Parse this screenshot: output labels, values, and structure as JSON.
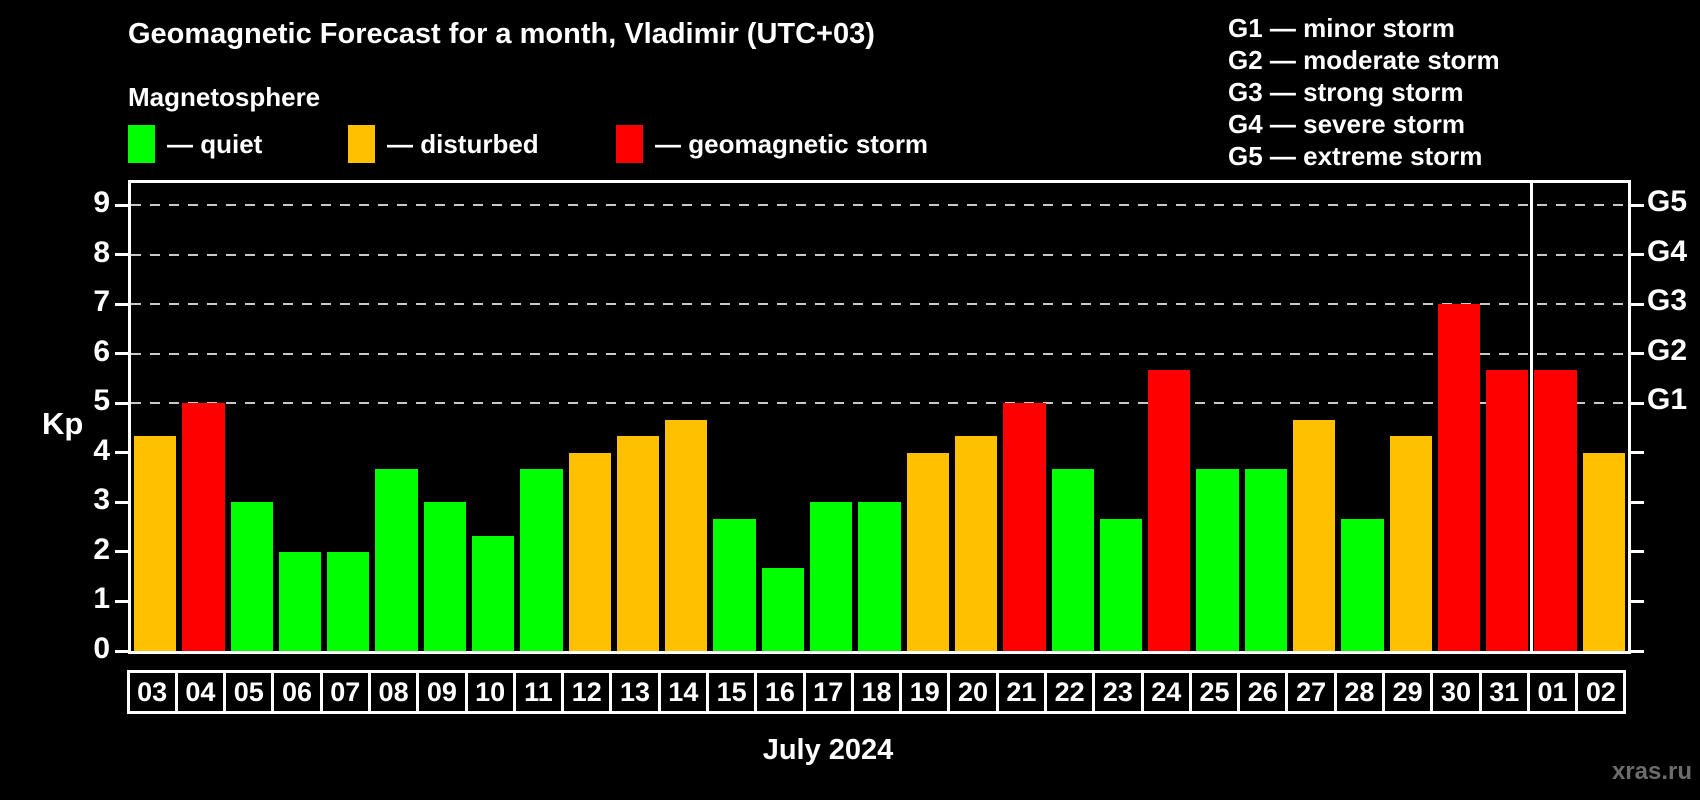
{
  "chart_data": {
    "type": "bar",
    "title": "Geomagnetic Forecast for a month, Vladimir (UTC+03)",
    "subtitle": "Magnetosphere",
    "categories": [
      "03",
      "04",
      "05",
      "06",
      "07",
      "08",
      "09",
      "10",
      "11",
      "12",
      "13",
      "14",
      "15",
      "16",
      "17",
      "18",
      "19",
      "20",
      "21",
      "22",
      "23",
      "24",
      "25",
      "26",
      "27",
      "28",
      "29",
      "30",
      "31",
      "01",
      "02"
    ],
    "values": [
      4.33,
      5,
      3,
      2,
      2,
      3.67,
      3,
      2.33,
      3.67,
      4,
      4.33,
      4.67,
      2.67,
      1.67,
      3,
      3,
      4,
      4.33,
      5,
      3.67,
      2.67,
      5.67,
      3.67,
      3.67,
      4.67,
      2.67,
      4.33,
      7,
      5.67,
      5.67,
      4
    ],
    "statuses": [
      "disturbed",
      "storm",
      "quiet",
      "quiet",
      "quiet",
      "quiet",
      "quiet",
      "quiet",
      "quiet",
      "disturbed",
      "disturbed",
      "disturbed",
      "quiet",
      "quiet",
      "quiet",
      "quiet",
      "disturbed",
      "disturbed",
      "storm",
      "quiet",
      "quiet",
      "storm",
      "quiet",
      "quiet",
      "disturbed",
      "quiet",
      "disturbed",
      "storm",
      "storm",
      "storm",
      "disturbed"
    ],
    "series_colors": {
      "quiet": "#00ff00",
      "disturbed": "#ffc000",
      "storm": "#ff0000"
    },
    "legend": [
      {
        "status": "quiet",
        "label": "— quiet",
        "color": "#00ff00"
      },
      {
        "status": "disturbed",
        "label": "— disturbed",
        "color": "#ffc000"
      },
      {
        "status": "storm",
        "label": "— geomagnetic storm",
        "color": "#ff0000"
      }
    ],
    "g_legend": [
      "G1 — minor storm",
      "G2 — moderate storm",
      "G3 — strong storm",
      "G4 — severe storm",
      "G5 — extreme storm"
    ],
    "ylabel": "Kp",
    "y_ticks": [
      0,
      1,
      2,
      3,
      4,
      5,
      6,
      7,
      8,
      9
    ],
    "ylim": [
      0,
      9.45
    ],
    "grid_levels": [
      5,
      6,
      7,
      8,
      9
    ],
    "right_axis": [
      {
        "label": "G1",
        "kp": 5
      },
      {
        "label": "G2",
        "kp": 6
      },
      {
        "label": "G3",
        "kp": 7
      },
      {
        "label": "G4",
        "kp": 8
      },
      {
        "label": "G5",
        "kp": 9
      }
    ],
    "month_label": "July 2024",
    "month_separator_after_index": 28,
    "watermark": "xras.ru"
  }
}
